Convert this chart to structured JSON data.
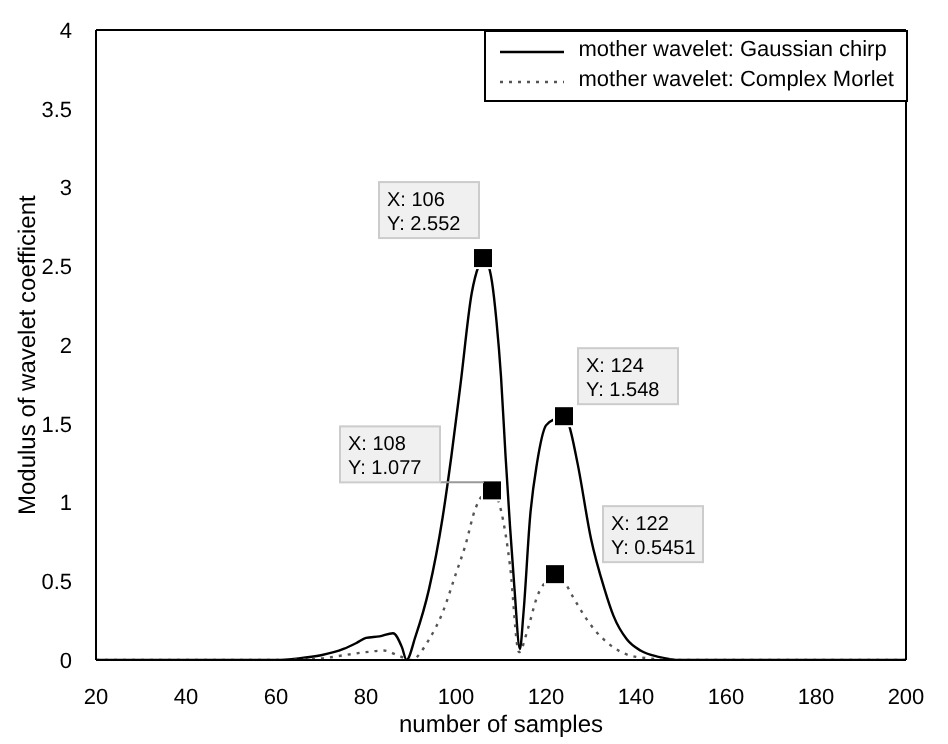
{
  "chart_data": {
    "type": "line",
    "xlabel": "number of samples",
    "ylabel": "Modulus of wavelet coefficient",
    "xlim": [
      20,
      200
    ],
    "xticks": [
      20,
      40,
      60,
      80,
      100,
      120,
      140,
      160,
      180,
      200
    ],
    "ylim": [
      0,
      4
    ],
    "yticks": [
      0,
      0.5,
      1,
      1.5,
      2,
      2.5,
      3,
      3.5,
      4
    ],
    "grid": false,
    "legend": "top right",
    "marker": "none",
    "series": [
      {
        "name": "mother wavelet: Gaussian chirp",
        "color": "#000000",
        "line_style": "solid",
        "x": [
          20,
          50,
          60,
          65,
          70,
          75,
          78,
          80,
          83,
          86,
          88,
          89,
          91,
          94,
          97,
          99,
          101,
          103.5,
          105,
          106,
          107,
          108,
          109,
          110,
          111,
          112,
          113,
          114.2,
          115,
          116.5,
          118,
          120,
          122,
          124,
          125,
          127,
          130,
          133,
          135,
          138,
          141,
          145,
          150,
          160,
          200
        ],
        "values": [
          0,
          0,
          0,
          0.01,
          0.03,
          0.07,
          0.11,
          0.14,
          0.15,
          0.17,
          0.08,
          0,
          0.15,
          0.45,
          0.9,
          1.3,
          1.75,
          2.33,
          2.5,
          2.552,
          2.52,
          2.4,
          2.15,
          1.8,
          1.3,
          0.85,
          0.45,
          0.07,
          0.3,
          0.92,
          1.25,
          1.49,
          1.53,
          1.548,
          1.5,
          1.25,
          0.77,
          0.45,
          0.28,
          0.13,
          0.06,
          0.02,
          0,
          0,
          0
        ]
      },
      {
        "name": "mother wavelet: Complex Morlet",
        "color": "#555555",
        "line_style": "dotted",
        "x": [
          20,
          60,
          70,
          75,
          80,
          84,
          87,
          90,
          94,
          97,
          100,
          102,
          104.3,
          106,
          108,
          110,
          112,
          114,
          116,
          118,
          120,
          122,
          124,
          126,
          130,
          135,
          140,
          150,
          200
        ],
        "values": [
          0,
          0,
          0.01,
          0.03,
          0.05,
          0.06,
          0.03,
          0,
          0.13,
          0.3,
          0.55,
          0.72,
          0.96,
          1.05,
          1.077,
          0.95,
          0.6,
          0.05,
          0.2,
          0.4,
          0.5,
          0.5451,
          0.5,
          0.4,
          0.22,
          0.08,
          0.02,
          0,
          0
        ]
      }
    ],
    "annotations": [
      {
        "text": "X: 106\nY: 2.552",
        "x": 106,
        "y": 2.552
      },
      {
        "text": "X: 108\nY: 1.077",
        "x": 108,
        "y": 1.077
      },
      {
        "text": "X: 124\nY: 1.548",
        "x": 124,
        "y": 1.548
      },
      {
        "text": "X: 122\nY: 0.5451",
        "x": 122,
        "y": 0.5451
      }
    ]
  }
}
